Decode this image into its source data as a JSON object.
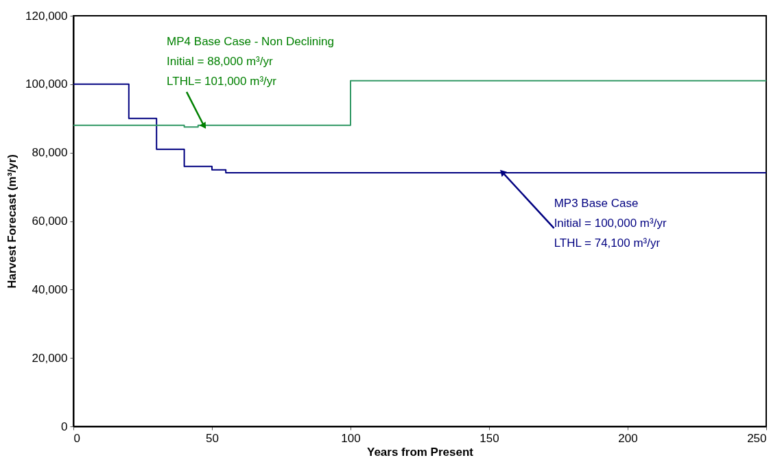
{
  "chart_data": {
    "type": "step",
    "xlabel": "Years from Present",
    "ylabel": "Harvest Forecast (m³/yr)",
    "xlim": [
      0,
      250
    ],
    "xticks": [
      0,
      50,
      100,
      150,
      200,
      250
    ],
    "ylim": [
      0,
      120000
    ],
    "yticks": [
      {
        "value": 0,
        "label": "0"
      },
      {
        "value": 20000,
        "label": "20,000"
      },
      {
        "value": 40000,
        "label": "40,000"
      },
      {
        "value": 60000,
        "label": "60,000"
      },
      {
        "value": 80000,
        "label": "80,000"
      },
      {
        "value": 100000,
        "label": "100,000"
      },
      {
        "value": 120000,
        "label": "120,000"
      }
    ],
    "grid": false,
    "marker": "none",
    "line_style": "solid",
    "series": [
      {
        "color": "#000080",
        "x": [
          0,
          20,
          30,
          40,
          50,
          55,
          250
        ],
        "values": [
          100000,
          90000,
          81000,
          76000,
          75000,
          74100,
          74100
        ]
      },
      {
        "color": "#339966",
        "x": [
          0,
          40,
          45,
          100,
          250
        ],
        "values": [
          88000,
          87500,
          88000,
          101000,
          101000
        ]
      }
    ],
    "annotations": [
      {
        "text": "MP4 Base Case - Non Declining\n   Initial = 88,000 m³/yr\n   LTHL= 101,000 m³/yr",
        "x": 47,
        "y": 88000
      },
      {
        "text": "MP3 Base Case\n   Initial = 100,000 m³/yr\n   LTHL = 74,100 m³/yr",
        "x": 155,
        "y": 74100
      }
    ]
  }
}
